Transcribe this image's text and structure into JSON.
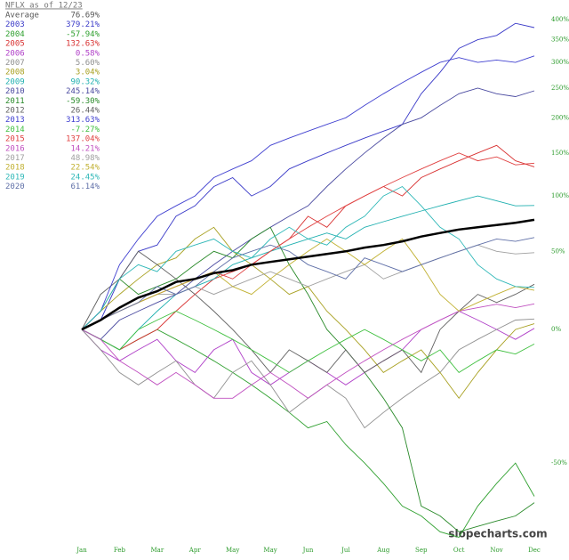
{
  "chart_data": {
    "type": "line",
    "title": "NFLX as of 12/23",
    "watermark": "slopecharts.com",
    "log_scale": true,
    "xlim": [
      0,
      12
    ],
    "x": [
      0,
      0.5,
      1,
      1.5,
      2,
      2.5,
      3,
      3.5,
      4,
      4.5,
      5,
      5.5,
      6,
      6.5,
      7,
      7.5,
      8,
      8.5,
      9,
      9.5,
      10,
      10.5,
      11,
      11.5,
      12
    ],
    "xticks": [
      {
        "value": 0,
        "label": "Jan"
      },
      {
        "value": 1,
        "label": "Feb"
      },
      {
        "value": 2,
        "label": "Mar"
      },
      {
        "value": 3,
        "label": "Apr"
      },
      {
        "value": 4,
        "label": "May"
      },
      {
        "value": 5,
        "label": "May"
      },
      {
        "value": 6,
        "label": "Jun"
      },
      {
        "value": 7,
        "label": "Jul"
      },
      {
        "value": 8,
        "label": "Aug"
      },
      {
        "value": 9,
        "label": "Sep"
      },
      {
        "value": 10,
        "label": "Oct"
      },
      {
        "value": 11,
        "label": "Nov"
      },
      {
        "value": 12,
        "label": "Dec"
      }
    ],
    "ylim": [
      -67,
      453
    ],
    "yticks": [
      {
        "value": -50,
        "label": "-50%"
      },
      {
        "value": 0,
        "label": "0%"
      },
      {
        "value": 50,
        "label": "50%"
      },
      {
        "value": 100,
        "label": "100%"
      },
      {
        "value": 150,
        "label": "150%"
      },
      {
        "value": 200,
        "label": "200%"
      },
      {
        "value": 250,
        "label": "250%"
      },
      {
        "value": 300,
        "label": "300%"
      },
      {
        "value": 350,
        "label": "350%"
      },
      {
        "value": 400,
        "label": "400%"
      }
    ],
    "series": [
      {
        "name": "Average",
        "color": "#000000",
        "change": {
          "value": 76.69,
          "label": "76.69%"
        },
        "values": [
          0,
          5,
          12,
          18,
          22,
          28,
          30,
          34,
          36,
          40,
          42,
          44,
          46,
          48,
          50,
          53,
          55,
          58,
          62,
          65,
          68,
          70,
          72,
          74,
          76.69
        ]
      },
      {
        "name": "2003",
        "color": "#3a3ac8",
        "change": {
          "value": 379.21,
          "label": "379.21%"
        },
        "values": [
          0,
          5,
          30,
          50,
          55,
          80,
          90,
          110,
          120,
          100,
          110,
          130,
          140,
          150,
          160,
          170,
          180,
          190,
          240,
          280,
          330,
          350,
          360,
          390,
          379.21
        ]
      },
      {
        "name": "2004",
        "color": "#2fa02f",
        "change": {
          "value": -57.94,
          "label": "-57.94%"
        },
        "values": [
          0,
          -5,
          -10,
          -5,
          0,
          -5,
          -10,
          -15,
          -20,
          -25,
          -30,
          -35,
          -40,
          -38,
          -45,
          -50,
          -55,
          -60,
          -62,
          -65,
          -66,
          -60,
          -55,
          -50,
          -57.94
        ]
      },
      {
        "name": "2005",
        "color": "#d83030",
        "change": {
          "value": 132.63,
          "label": "132.63%"
        },
        "values": [
          0,
          -5,
          -10,
          -5,
          0,
          10,
          20,
          30,
          35,
          40,
          50,
          60,
          80,
          70,
          90,
          100,
          110,
          100,
          120,
          130,
          140,
          150,
          160,
          140,
          132.63
        ]
      },
      {
        "name": "2006",
        "color": "#b040c8",
        "change": {
          "value": 0.58,
          "label": "0.58%"
        },
        "values": [
          0,
          -10,
          -15,
          -10,
          -5,
          -15,
          -20,
          -10,
          -5,
          -20,
          -25,
          -20,
          -15,
          -20,
          -25,
          -20,
          -15,
          -10,
          0,
          5,
          10,
          5,
          0,
          -5,
          0.58
        ]
      },
      {
        "name": "2007",
        "color": "#909090",
        "change": {
          "value": 5.6,
          "label": "5.60%"
        },
        "values": [
          0,
          -10,
          -20,
          -25,
          -20,
          -15,
          -25,
          -30,
          -20,
          -15,
          -25,
          -35,
          -30,
          -25,
          -30,
          -40,
          -35,
          -30,
          -25,
          -20,
          -10,
          -5,
          0,
          5,
          5.6
        ]
      },
      {
        "name": "2008",
        "color": "#a8a020",
        "change": {
          "value": 3.04,
          "label": "3.04%"
        },
        "values": [
          0,
          10,
          20,
          30,
          40,
          45,
          60,
          70,
          50,
          40,
          30,
          20,
          25,
          10,
          0,
          -10,
          -20,
          -15,
          -10,
          -20,
          -30,
          -20,
          -10,
          0,
          3.04
        ]
      },
      {
        "name": "2009",
        "color": "#20b0b0",
        "change": {
          "value": 90.32,
          "label": "90.32%"
        },
        "values": [
          0,
          -5,
          -10,
          0,
          10,
          20,
          25,
          30,
          40,
          45,
          50,
          55,
          60,
          65,
          60,
          70,
          75,
          80,
          85,
          90,
          95,
          100,
          95,
          90,
          90.32
        ]
      },
      {
        "name": "2010",
        "color": "#4a4aa0",
        "change": {
          "value": 245.14,
          "label": "245.14%"
        },
        "values": [
          0,
          -5,
          5,
          10,
          15,
          20,
          30,
          40,
          50,
          60,
          70,
          80,
          90,
          110,
          130,
          150,
          170,
          190,
          200,
          220,
          240,
          250,
          240,
          235,
          245.14
        ]
      },
      {
        "name": "2011",
        "color": "#2a8a2a",
        "change": {
          "value": -59.3,
          "label": "-59.30%"
        },
        "values": [
          0,
          10,
          30,
          20,
          25,
          30,
          40,
          50,
          45,
          60,
          70,
          40,
          20,
          0,
          -10,
          -20,
          -30,
          -40,
          -60,
          -62,
          -65,
          -64,
          -63,
          -62,
          -59.3
        ]
      },
      {
        "name": "2012",
        "color": "#606060",
        "change": {
          "value": 26.44,
          "label": "26.44%"
        },
        "values": [
          0,
          20,
          30,
          50,
          40,
          30,
          20,
          10,
          0,
          -10,
          -20,
          -10,
          -15,
          -20,
          -10,
          -20,
          -15,
          -10,
          -20,
          0,
          10,
          20,
          15,
          20,
          26.44
        ]
      },
      {
        "name": "2013",
        "color": "#4040d0",
        "change": {
          "value": 313.63,
          "label": "313.63%"
        },
        "values": [
          0,
          10,
          40,
          60,
          80,
          90,
          100,
          120,
          130,
          140,
          160,
          170,
          180,
          190,
          200,
          220,
          240,
          260,
          280,
          300,
          310,
          300,
          305,
          300,
          313.63
        ]
      },
      {
        "name": "2014",
        "color": "#40c040",
        "change": {
          "value": -7.27,
          "label": "-7.27%"
        },
        "values": [
          0,
          -5,
          -10,
          0,
          5,
          10,
          5,
          0,
          -5,
          -10,
          -15,
          -20,
          -15,
          -10,
          -5,
          0,
          -5,
          -10,
          -15,
          -10,
          -20,
          -15,
          -10,
          -12,
          -7.27
        ]
      },
      {
        "name": "2015",
        "color": "#e04040",
        "change": {
          "value": 137.04,
          "label": "137.04%"
        },
        "values": [
          0,
          5,
          10,
          15,
          20,
          25,
          30,
          35,
          30,
          40,
          50,
          60,
          70,
          80,
          90,
          100,
          110,
          120,
          130,
          140,
          150,
          140,
          145,
          135,
          137.04
        ]
      },
      {
        "name": "2016",
        "color": "#c050c0",
        "change": {
          "value": 14.21,
          "label": "14.21%"
        },
        "values": [
          0,
          -5,
          -15,
          -20,
          -25,
          -20,
          -25,
          -30,
          -30,
          -25,
          -20,
          -25,
          -30,
          -25,
          -20,
          -15,
          -10,
          -5,
          0,
          5,
          10,
          12,
          14,
          12,
          14.21
        ]
      },
      {
        "name": "2017",
        "color": "#a0a0a0",
        "change": {
          "value": 48.98,
          "label": "48.98%"
        },
        "values": [
          0,
          5,
          10,
          15,
          20,
          20,
          25,
          20,
          25,
          30,
          35,
          30,
          25,
          30,
          35,
          40,
          30,
          35,
          40,
          45,
          50,
          55,
          50,
          48,
          48.98
        ]
      },
      {
        "name": "2018",
        "color": "#c0b030",
        "change": {
          "value": 22.54,
          "label": "22.54%"
        },
        "values": [
          0,
          5,
          10,
          15,
          20,
          25,
          30,
          35,
          25,
          20,
          30,
          40,
          50,
          60,
          50,
          40,
          50,
          60,
          40,
          20,
          10,
          15,
          20,
          25,
          22.54
        ]
      },
      {
        "name": "2019",
        "color": "#30b8b8",
        "change": {
          "value": 24.45,
          "label": "24.45%"
        },
        "values": [
          0,
          10,
          30,
          40,
          35,
          50,
          55,
          60,
          50,
          45,
          60,
          70,
          60,
          55,
          70,
          80,
          100,
          110,
          90,
          70,
          60,
          40,
          30,
          25,
          24.45
        ]
      },
      {
        "name": "2020",
        "color": "#6070a8",
        "change": {
          "value": 61.14,
          "label": "61.14%"
        },
        "values": [
          0,
          5,
          10,
          15,
          25,
          20,
          25,
          35,
          45,
          50,
          55,
          50,
          40,
          35,
          30,
          45,
          40,
          35,
          40,
          45,
          50,
          55,
          60,
          58,
          61.14
        ]
      }
    ]
  }
}
